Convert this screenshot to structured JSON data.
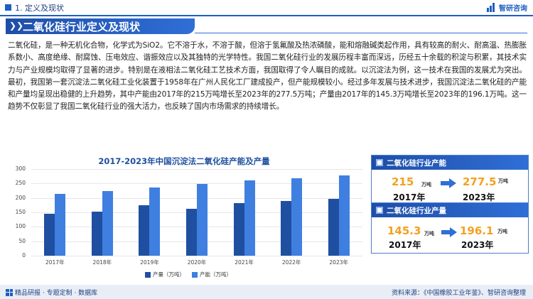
{
  "header": {
    "section": "1. 定义及现状",
    "brand": "智研咨询"
  },
  "banner": {
    "title": "二氧化硅行业定义及现状"
  },
  "intro": {
    "text": "二氧化硅，是一种无机化合物，化学式为SiO2。它不溶于水，不溶于酸，但溶于氢氟酸及热浓磷酸，能和熔融碱类起作用，具有较高的耐火、耐高温、热膨胀系数小、高度绝缘、耐腐蚀、压电效应、谐振效应以及其独特的光学特性。我国二氧化硅行业的发展历程丰富而深远，历经五十余载的积淀与积累，其技术实力与产业规模均取得了显著的进步。特别是在液相法二氧化硅工艺技术方面，我国取得了令人瞩目的成就。以沉淀法为例，这一技术在我国的发展尤为突出。最初，我国第一套沉淀法二氧化硅工业化装置于1958年在广州人民化工厂建成投产，但产能规模较小。经过多年发展与技术进步，我国沉淀法二氧化硅的产能和产量均呈现出稳健的上升趋势，其中产能由2017年的215万吨增长至2023年的277.5万吨；产量由2017年的145.3万吨增长至2023年的196.1万吨。这一趋势不仅彰显了我国二氧化硅行业的强大活力，也反映了国内市场需求的持续增长。"
  },
  "chart_data": {
    "type": "bar",
    "title": "2017-2023年中国沉淀法二氧化硅产能及产量",
    "categories": [
      "2017年",
      "2018年",
      "2019年",
      "2020年",
      "2021年",
      "2022年",
      "2023年"
    ],
    "series": [
      {
        "name": "产量（万吨）",
        "color": "#1f4fa0",
        "values": [
          145.3,
          152,
          175,
          163,
          181,
          190,
          196.1
        ]
      },
      {
        "name": "产能（万吨）",
        "color": "#3f7fe0",
        "values": [
          215,
          225,
          235,
          248,
          260,
          268,
          277.5
        ]
      }
    ],
    "ylim": [
      0,
      300
    ],
    "yticks": [
      "300",
      "250",
      "200",
      "150",
      "100",
      "50",
      "0"
    ],
    "grid": true,
    "legend": "bottom"
  },
  "panels": [
    {
      "title": "二氧化硅行业产能",
      "from_value": "215",
      "from_unit": "万吨",
      "from_year": "2017年",
      "to_value": "277.5",
      "to_unit": "万吨",
      "to_year": "2023年"
    },
    {
      "title": "二氧化硅行业产量",
      "from_value": "145.3",
      "from_unit": "万吨",
      "from_year": "2017年",
      "to_value": "196.1",
      "to_unit": "万吨",
      "to_year": "2023年"
    }
  ],
  "footer": {
    "left": "精品研报 · 专题定制 · 数据库",
    "source": "资料来源：《中国橡胶工业年鉴》、智研咨询整理"
  }
}
